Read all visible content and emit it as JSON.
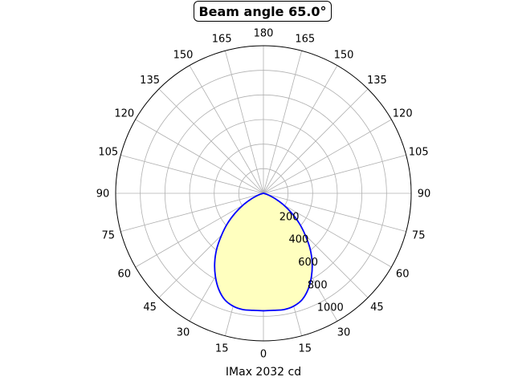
{
  "chart_data": {
    "type": "polar-area",
    "title": "Beam angle 65.0°",
    "xlabel": "IMax 2032 cd",
    "angle_tick_labels": [
      "0",
      "15",
      "30",
      "45",
      "60",
      "75",
      "90",
      "105",
      "120",
      "135",
      "150",
      "165",
      "180",
      "165",
      "150",
      "135",
      "120",
      "105",
      "90",
      "75",
      "60",
      "45",
      "30",
      "15"
    ],
    "radial_ticks": [
      200,
      400,
      600,
      800,
      1000
    ],
    "radial_tick_labels": [
      "200",
      "400",
      "600",
      "800",
      "1000"
    ],
    "rlim": [
      0,
      1200
    ],
    "grid": true,
    "series": [
      {
        "angles_deg": [
          0,
          5,
          10,
          15,
          20,
          25,
          30,
          35,
          40,
          45,
          50,
          55,
          60,
          65,
          70,
          75,
          80,
          85,
          90
        ],
        "values": [
          955,
          955,
          960,
          950,
          920,
          860,
          780,
          690,
          590,
          480,
          380,
          280,
          190,
          110,
          50,
          15,
          0,
          0,
          0
        ],
        "line_color": "#0000ff",
        "fill_color": "#ffffbf"
      }
    ]
  }
}
